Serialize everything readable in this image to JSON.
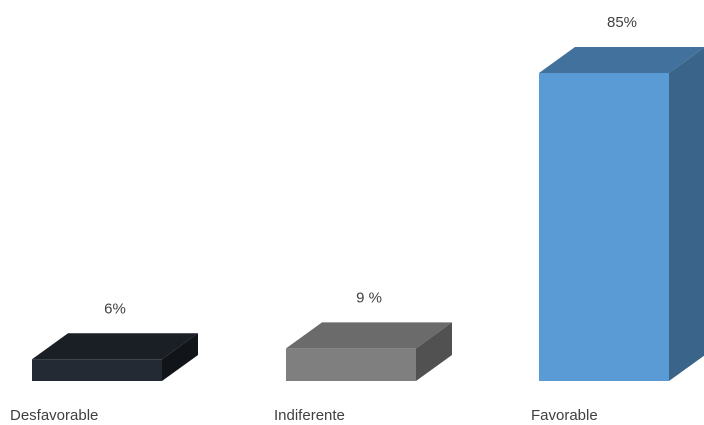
{
  "chart_data": {
    "type": "bar",
    "categories": [
      "Desfavorable",
      "Indiferente",
      "Favorable"
    ],
    "values": [
      6,
      9,
      85
    ],
    "data_labels": [
      "6%",
      "9 %",
      "85%"
    ],
    "unit": "%",
    "style": "3d-column",
    "grid": false,
    "legend": "none",
    "ylim": [
      0,
      85
    ],
    "colors": [
      {
        "front": "#232a33",
        "top": "#1a1f26",
        "side": "#111418"
      },
      {
        "front": "#7f7f7f",
        "top": "#6b6b6b",
        "side": "#515151"
      },
      {
        "front": "#5b9bd5",
        "top": "#41719c",
        "side": "#3a6489"
      }
    ]
  }
}
